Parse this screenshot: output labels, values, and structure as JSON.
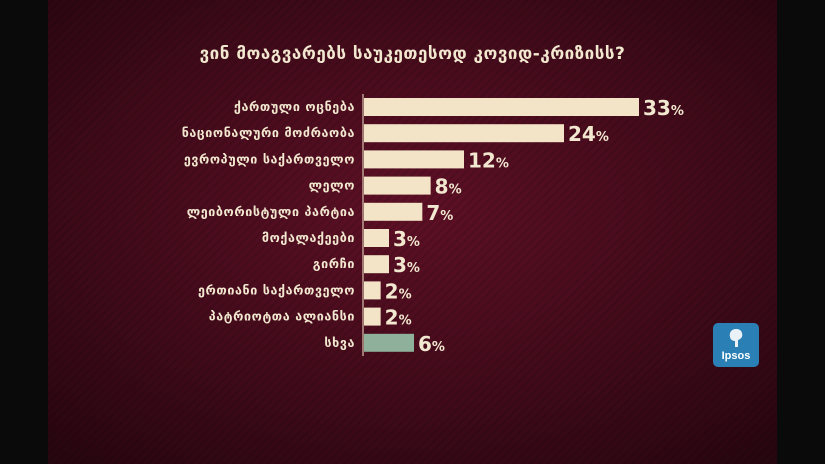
{
  "title": "ვინ მოაგვარებს საუკეთესოდ კოვიდ-კრიზისს?",
  "logo_text": "Ipsos",
  "colors": {
    "bar": "#f3e4c7",
    "bar_other": "#8fb09a",
    "text": "#f2e7cf",
    "logo": "#2a7fb4"
  },
  "chart_data": {
    "type": "bar",
    "orientation": "horizontal",
    "title": "ვინ მოაგვარებს საუკეთესოდ კოვიდ-კრიზისს?",
    "xlabel": "",
    "ylabel": "",
    "xlim": [
      0,
      33
    ],
    "grid": false,
    "categories": [
      "ქართული ოცნება",
      "ნაციონალური მოძრაობა",
      "ევროპული საქართველო",
      "ლელო",
      "ლეიბორისტული პარტია",
      "მოქალაქეები",
      "გირჩი",
      "ერთიანი საქართველო",
      "პატრიოტთა ალიანსი",
      "სხვა"
    ],
    "values": [
      33,
      24,
      12,
      8,
      7,
      3,
      3,
      2,
      2,
      6
    ],
    "value_suffix": "%"
  }
}
